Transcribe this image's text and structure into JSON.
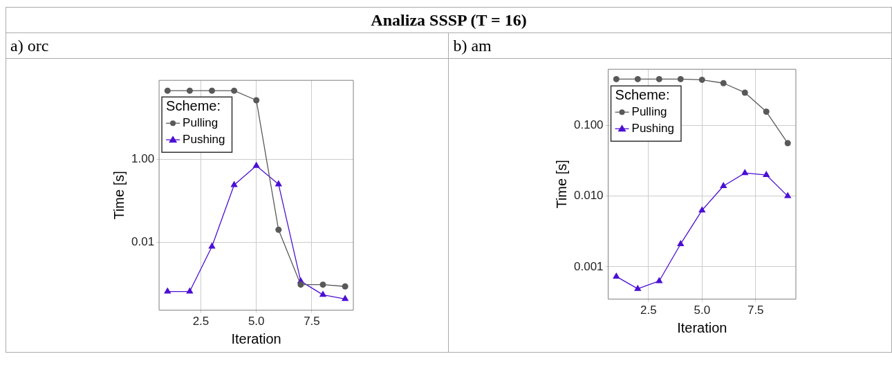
{
  "chart_data": [
    {
      "type": "line",
      "title": "a) orc",
      "annotations": [
        "Analiza SSSP (T = 16)"
      ],
      "xlabel": "Iteration",
      "ylabel": "Time [s]",
      "legend_title": "Scheme:",
      "legend": "top left",
      "grid": true,
      "log": "y",
      "x": [
        1,
        2,
        3,
        4,
        5,
        6,
        7,
        8,
        9
      ],
      "xlim": [
        0.62,
        9.37
      ],
      "xticks": [
        {
          "value": 2.5,
          "label": "2.5"
        },
        {
          "value": 5,
          "label": "5.0"
        },
        {
          "value": 7.5,
          "label": "7.5"
        }
      ],
      "ylim": [
        0.00023,
        80
      ],
      "yticks": [
        {
          "value": 1,
          "label": "1.00"
        },
        0.01
      ],
      "series": [
        {
          "name": "Pulling",
          "color": "#595959",
          "marker": "circle",
          "values": [
            45,
            45,
            45,
            45,
            26.5,
            0.02,
            0.00095,
            0.00095,
            0.00086
          ]
        },
        {
          "name": "Pushing",
          "color": "#4b0fd4",
          "marker": "triangle",
          "values": [
            0.00065,
            0.00065,
            0.0079,
            0.24,
            0.7,
            0.25,
            0.00115,
            0.00054,
            0.00043
          ]
        }
      ]
    },
    {
      "type": "line",
      "title": "b) am",
      "xlabel": "Iteration",
      "ylabel": "Time [s]",
      "legend_title": "Scheme:",
      "legend": "top left",
      "grid": true,
      "log": "y",
      "x": [
        1,
        2,
        3,
        4,
        5,
        6,
        7,
        8,
        9
      ],
      "xlim": [
        0.62,
        9.38
      ],
      "xticks": [
        {
          "value": 2.5,
          "label": "2.5"
        },
        {
          "value": 5,
          "label": "5.0"
        },
        {
          "value": 7.5,
          "label": "7.5"
        }
      ],
      "ylim": [
        0.00035,
        0.62
      ],
      "yticks": [
        {
          "value": 0.1,
          "label": "0.100"
        },
        {
          "value": 0.01,
          "label": "0.010"
        },
        0.001
      ],
      "series": [
        {
          "name": "Pulling",
          "color": "#595959",
          "marker": "circle",
          "values": [
            0.45,
            0.45,
            0.45,
            0.45,
            0.44,
            0.395,
            0.29,
            0.156,
            0.056
          ]
        },
        {
          "name": "Pushing",
          "color": "#4b0fd4",
          "marker": "triangle",
          "values": [
            0.00073,
            0.00049,
            0.00063,
            0.0021,
            0.0063,
            0.0139,
            0.0212,
            0.0199,
            0.01
          ]
        }
      ]
    }
  ]
}
